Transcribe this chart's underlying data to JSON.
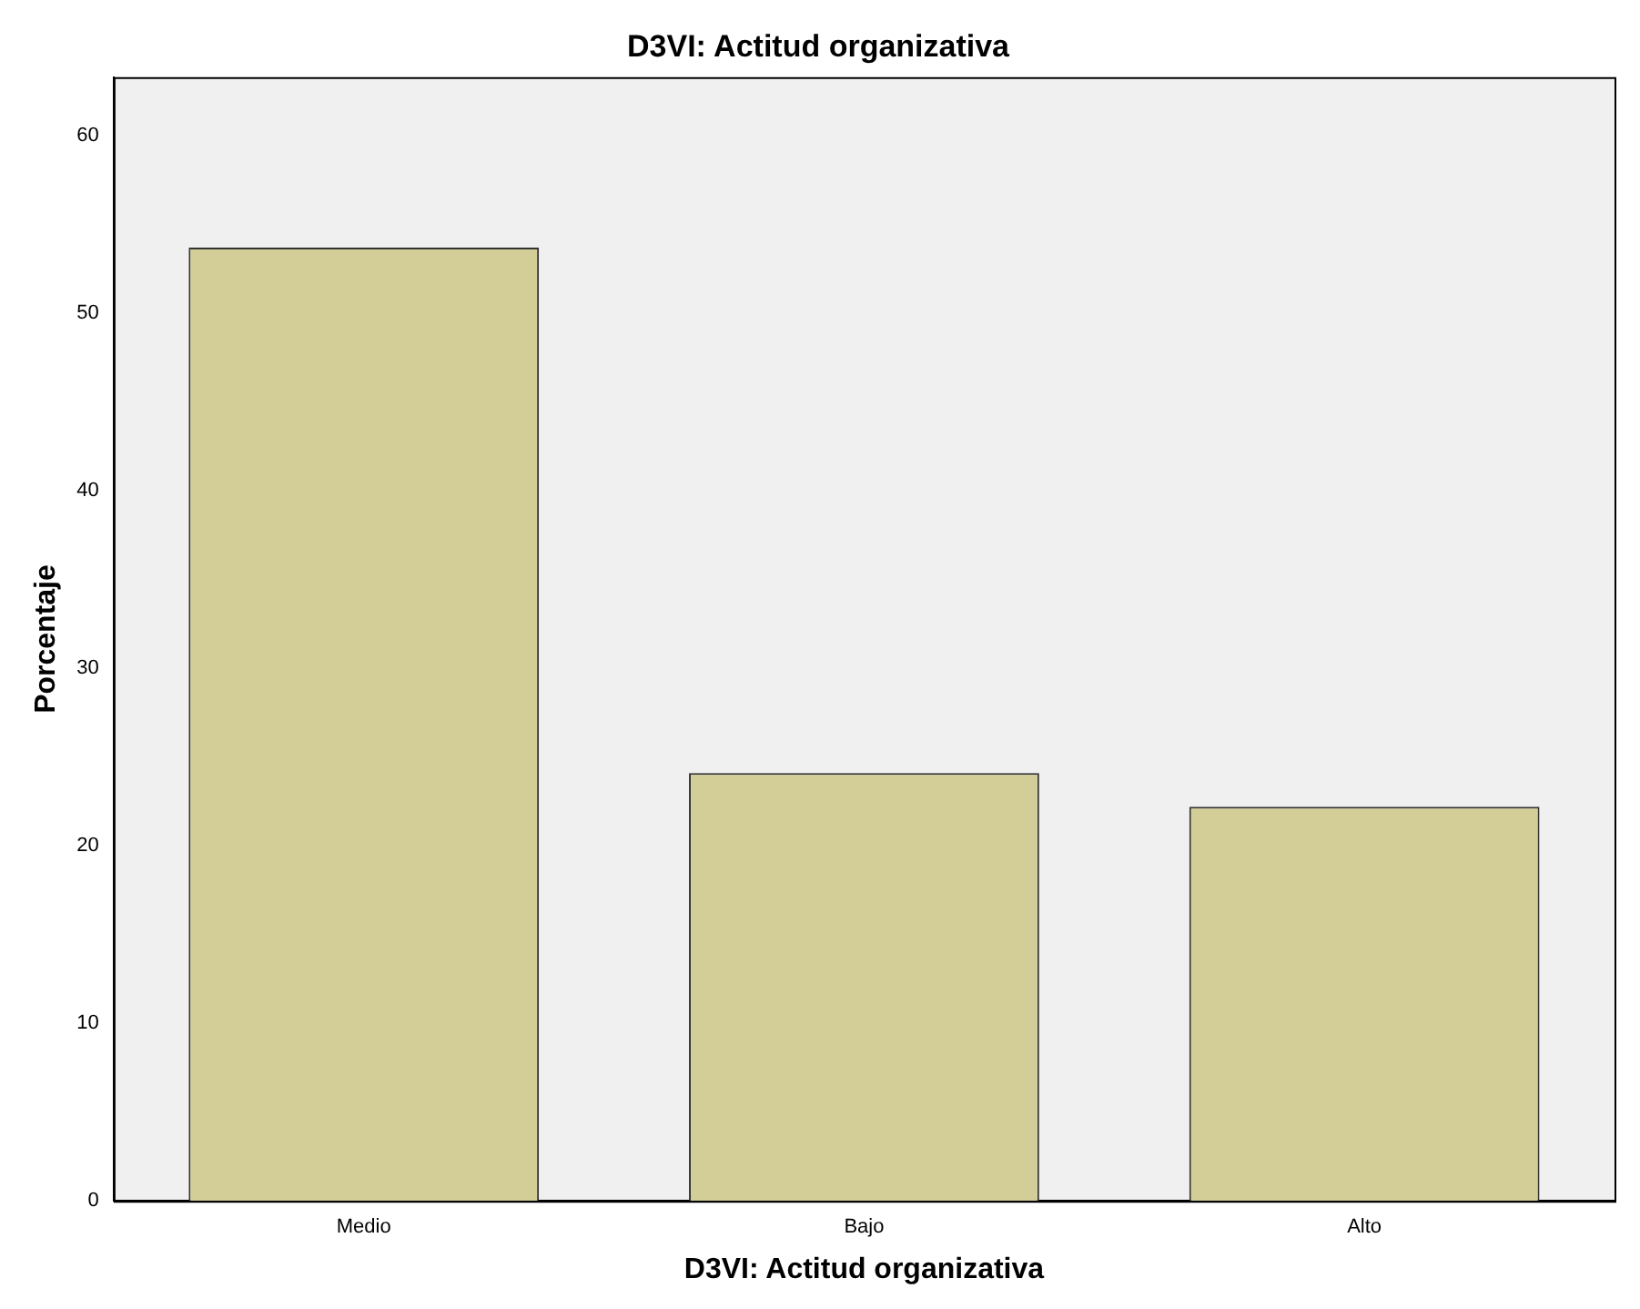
{
  "chart_data": {
    "type": "bar",
    "title": "D3VI: Actitud organizativa",
    "xlabel": "D3VI: Actitud organizativa",
    "ylabel": "Porcentaje",
    "categories": [
      "Medio",
      "Bajo",
      "Alto"
    ],
    "values": [
      53.7,
      24.1,
      22.2
    ],
    "color": "#d3ce98",
    "ylim": [
      0,
      63.3
    ],
    "yticks": [
      0,
      10,
      20,
      30,
      40,
      50,
      60
    ],
    "grid": false,
    "legend": false
  }
}
